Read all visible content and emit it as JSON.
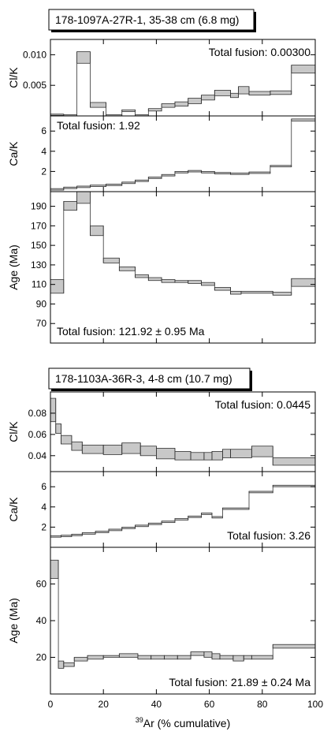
{
  "figure": {
    "xaxis_label_sup": "39",
    "xaxis_label_rest": "Ar (% cumulative)",
    "xticks": [
      "0",
      "20",
      "40",
      "60",
      "80",
      "100"
    ]
  },
  "chart_data": [
    {
      "type": "step-spectrum",
      "sample_label": "178-1097A-27R-1, 35-38 cm (6.8 mg)",
      "xlim": [
        0,
        100
      ],
      "panels": [
        {
          "id": "clk",
          "ylabel": "Cl/K",
          "ylim": [
            0.0,
            0.0125
          ],
          "yticks": [
            0.005,
            0.01
          ],
          "ytick_labels": [
            "0.005",
            "0.010"
          ],
          "annotation": "Total fusion: 0.00300",
          "annotation_pos": "top-right",
          "steps": [
            {
              "x0": 0,
              "x1": 5,
              "lo": 0.0001,
              "hi": 0.0003
            },
            {
              "x0": 5,
              "x1": 10,
              "lo": 0.0,
              "hi": 0.0002
            },
            {
              "x0": 10,
              "x1": 15,
              "lo": 0.0086,
              "hi": 0.0105
            },
            {
              "x0": 15,
              "x1": 21,
              "lo": 0.0014,
              "hi": 0.0022
            },
            {
              "x0": 21,
              "x1": 27,
              "lo": 0.0,
              "hi": 0.0002
            },
            {
              "x0": 27,
              "x1": 32,
              "lo": 0.0007,
              "hi": 0.001
            },
            {
              "x0": 32,
              "x1": 37,
              "lo": 0.0,
              "hi": 0.0002
            },
            {
              "x0": 37,
              "x1": 42,
              "lo": 0.0008,
              "hi": 0.0012
            },
            {
              "x0": 42,
              "x1": 47,
              "lo": 0.0014,
              "hi": 0.002
            },
            {
              "x0": 47,
              "x1": 52,
              "lo": 0.0016,
              "hi": 0.0023
            },
            {
              "x0": 52,
              "x1": 57,
              "lo": 0.002,
              "hi": 0.0029
            },
            {
              "x0": 57,
              "x1": 62,
              "lo": 0.0026,
              "hi": 0.0034
            },
            {
              "x0": 62,
              "x1": 68,
              "lo": 0.0033,
              "hi": 0.0042
            },
            {
              "x0": 68,
              "x1": 71,
              "lo": 0.003,
              "hi": 0.0037
            },
            {
              "x0": 71,
              "x1": 75,
              "lo": 0.0036,
              "hi": 0.0048
            },
            {
              "x0": 75,
              "x1": 83,
              "lo": 0.0034,
              "hi": 0.004
            },
            {
              "x0": 83,
              "x1": 91,
              "lo": 0.0035,
              "hi": 0.0041
            },
            {
              "x0": 91,
              "x1": 100,
              "lo": 0.007,
              "hi": 0.0083
            }
          ]
        },
        {
          "id": "cak",
          "ylabel": "Ca/K",
          "ylim": [
            0,
            7.5
          ],
          "yticks": [
            2,
            4,
            6
          ],
          "ytick_labels": [
            "2",
            "4",
            "6"
          ],
          "annotation": "Total fusion: 1.92",
          "annotation_pos": "top-left",
          "steps": [
            {
              "x0": 0,
              "x1": 5,
              "lo": 0.15,
              "hi": 0.3
            },
            {
              "x0": 5,
              "x1": 10,
              "lo": 0.3,
              "hi": 0.45
            },
            {
              "x0": 10,
              "x1": 15,
              "lo": 0.4,
              "hi": 0.55
            },
            {
              "x0": 15,
              "x1": 21,
              "lo": 0.5,
              "hi": 0.65
            },
            {
              "x0": 21,
              "x1": 27,
              "lo": 0.6,
              "hi": 0.75
            },
            {
              "x0": 27,
              "x1": 32,
              "lo": 0.8,
              "hi": 0.95
            },
            {
              "x0": 32,
              "x1": 37,
              "lo": 1.0,
              "hi": 1.15
            },
            {
              "x0": 37,
              "x1": 42,
              "lo": 1.3,
              "hi": 1.45
            },
            {
              "x0": 42,
              "x1": 47,
              "lo": 1.55,
              "hi": 1.7
            },
            {
              "x0": 47,
              "x1": 52,
              "lo": 1.85,
              "hi": 2.0
            },
            {
              "x0": 52,
              "x1": 57,
              "lo": 1.95,
              "hi": 2.1
            },
            {
              "x0": 57,
              "x1": 62,
              "lo": 1.85,
              "hi": 2.0
            },
            {
              "x0": 62,
              "x1": 68,
              "lo": 1.75,
              "hi": 1.9
            },
            {
              "x0": 68,
              "x1": 75,
              "lo": 1.7,
              "hi": 1.85
            },
            {
              "x0": 75,
              "x1": 83,
              "lo": 1.8,
              "hi": 1.95
            },
            {
              "x0": 83,
              "x1": 91,
              "lo": 2.45,
              "hi": 2.6
            },
            {
              "x0": 91,
              "x1": 100,
              "lo": 7.0,
              "hi": 7.2
            }
          ]
        },
        {
          "id": "age",
          "ylabel": "Age (Ma)",
          "ylim": [
            50,
            205
          ],
          "yticks": [
            70,
            90,
            110,
            130,
            150,
            170,
            190
          ],
          "ytick_labels": [
            "70",
            "90",
            "110",
            "130",
            "150",
            "170",
            "190"
          ],
          "annotation": "Total fusion: 121.92 ± 0.95 Ma",
          "annotation_pos": "bottom-left",
          "steps": [
            {
              "x0": 0,
              "x1": 5,
              "lo": 101,
              "hi": 115
            },
            {
              "x0": 5,
              "x1": 10,
              "lo": 186,
              "hi": 195
            },
            {
              "x0": 10,
              "x1": 15,
              "lo": 193,
              "hi": 205
            },
            {
              "x0": 15,
              "x1": 20,
              "lo": 160,
              "hi": 170
            },
            {
              "x0": 20,
              "x1": 26,
              "lo": 132,
              "hi": 137
            },
            {
              "x0": 26,
              "x1": 32,
              "lo": 124,
              "hi": 128
            },
            {
              "x0": 32,
              "x1": 37,
              "lo": 117,
              "hi": 120
            },
            {
              "x0": 37,
              "x1": 42,
              "lo": 114,
              "hi": 117
            },
            {
              "x0": 42,
              "x1": 47,
              "lo": 112,
              "hi": 115
            },
            {
              "x0": 47,
              "x1": 52,
              "lo": 112,
              "hi": 114
            },
            {
              "x0": 52,
              "x1": 57,
              "lo": 111,
              "hi": 114
            },
            {
              "x0": 57,
              "x1": 62,
              "lo": 109,
              "hi": 112
            },
            {
              "x0": 62,
              "x1": 68,
              "lo": 104,
              "hi": 107
            },
            {
              "x0": 68,
              "x1": 72,
              "lo": 100,
              "hi": 103
            },
            {
              "x0": 72,
              "x1": 84,
              "lo": 101,
              "hi": 103
            },
            {
              "x0": 84,
              "x1": 91,
              "lo": 99,
              "hi": 102
            },
            {
              "x0": 91,
              "x1": 100,
              "lo": 108,
              "hi": 116
            }
          ]
        }
      ]
    },
    {
      "type": "step-spectrum",
      "sample_label": "178-1103A-36R-3, 4-8 cm (10.7 mg)",
      "xlim": [
        0,
        100
      ],
      "panels": [
        {
          "id": "clk",
          "ylabel": "Cl/K",
          "ylim": [
            0.025,
            0.1
          ],
          "yticks": [
            0.04,
            0.06,
            0.08
          ],
          "ytick_labels": [
            "0.04",
            "0.06",
            "0.08"
          ],
          "annotation": "Total fusion: 0.0445",
          "annotation_pos": "top-right",
          "steps": [
            {
              "x0": 0,
              "x1": 2,
              "lo": 0.072,
              "hi": 0.094
            },
            {
              "x0": 2,
              "x1": 4,
              "lo": 0.061,
              "hi": 0.07
            },
            {
              "x0": 4,
              "x1": 8,
              "lo": 0.051,
              "hi": 0.059
            },
            {
              "x0": 8,
              "x1": 12,
              "lo": 0.045,
              "hi": 0.053
            },
            {
              "x0": 12,
              "x1": 20,
              "lo": 0.042,
              "hi": 0.05
            },
            {
              "x0": 20,
              "x1": 27,
              "lo": 0.041,
              "hi": 0.05
            },
            {
              "x0": 27,
              "x1": 34,
              "lo": 0.042,
              "hi": 0.052
            },
            {
              "x0": 34,
              "x1": 40,
              "lo": 0.04,
              "hi": 0.049
            },
            {
              "x0": 40,
              "x1": 47,
              "lo": 0.037,
              "hi": 0.047
            },
            {
              "x0": 47,
              "x1": 53,
              "lo": 0.036,
              "hi": 0.044
            },
            {
              "x0": 53,
              "x1": 58,
              "lo": 0.036,
              "hi": 0.043
            },
            {
              "x0": 58,
              "x1": 61,
              "lo": 0.036,
              "hi": 0.043
            },
            {
              "x0": 61,
              "x1": 65,
              "lo": 0.036,
              "hi": 0.044
            },
            {
              "x0": 65,
              "x1": 68,
              "lo": 0.038,
              "hi": 0.046
            },
            {
              "x0": 68,
              "x1": 76,
              "lo": 0.038,
              "hi": 0.046
            },
            {
              "x0": 76,
              "x1": 84,
              "lo": 0.039,
              "hi": 0.049
            },
            {
              "x0": 84,
              "x1": 100,
              "lo": 0.031,
              "hi": 0.038
            }
          ]
        },
        {
          "id": "cak",
          "ylabel": "Ca/K",
          "ylim": [
            0,
            7.5
          ],
          "yticks": [
            2,
            4,
            6
          ],
          "ytick_labels": [
            "2",
            "4",
            "6"
          ],
          "annotation": "Total fusion: 3.26",
          "annotation_pos": "bottom-right",
          "steps": [
            {
              "x0": 0,
              "x1": 4,
              "lo": 1.0,
              "hi": 1.15
            },
            {
              "x0": 4,
              "x1": 8,
              "lo": 1.05,
              "hi": 1.2
            },
            {
              "x0": 8,
              "x1": 12,
              "lo": 1.15,
              "hi": 1.3
            },
            {
              "x0": 12,
              "x1": 17,
              "lo": 1.3,
              "hi": 1.45
            },
            {
              "x0": 17,
              "x1": 22,
              "lo": 1.45,
              "hi": 1.6
            },
            {
              "x0": 22,
              "x1": 27,
              "lo": 1.65,
              "hi": 1.8
            },
            {
              "x0": 27,
              "x1": 32,
              "lo": 1.85,
              "hi": 2.0
            },
            {
              "x0": 32,
              "x1": 37,
              "lo": 2.05,
              "hi": 2.2
            },
            {
              "x0": 37,
              "x1": 42,
              "lo": 2.25,
              "hi": 2.4
            },
            {
              "x0": 42,
              "x1": 47,
              "lo": 2.45,
              "hi": 2.6
            },
            {
              "x0": 47,
              "x1": 52,
              "lo": 2.7,
              "hi": 2.85
            },
            {
              "x0": 52,
              "x1": 57,
              "lo": 2.95,
              "hi": 3.1
            },
            {
              "x0": 57,
              "x1": 61,
              "lo": 3.25,
              "hi": 3.4
            },
            {
              "x0": 61,
              "x1": 65,
              "lo": 2.9,
              "hi": 3.05
            },
            {
              "x0": 65,
              "x1": 75,
              "lo": 3.75,
              "hi": 3.9
            },
            {
              "x0": 75,
              "x1": 84,
              "lo": 5.4,
              "hi": 5.55
            },
            {
              "x0": 84,
              "x1": 100,
              "lo": 6.0,
              "hi": 6.15
            }
          ]
        },
        {
          "id": "age",
          "ylabel": "Age (Ma)",
          "ylim": [
            0,
            80
          ],
          "yticks": [
            20,
            40,
            60
          ],
          "ytick_labels": [
            "20",
            "40",
            "60"
          ],
          "annotation": "Total fusion: 21.89  ± 0.24 Ma",
          "annotation_pos": "bottom-right",
          "steps": [
            {
              "x0": 0,
              "x1": 3,
              "lo": 63,
              "hi": 73
            },
            {
              "x0": 3,
              "x1": 5,
              "lo": 14,
              "hi": 18
            },
            {
              "x0": 5,
              "x1": 9,
              "lo": 15,
              "hi": 17
            },
            {
              "x0": 9,
              "x1": 14,
              "lo": 18,
              "hi": 20
            },
            {
              "x0": 14,
              "x1": 20,
              "lo": 19,
              "hi": 21
            },
            {
              "x0": 20,
              "x1": 26,
              "lo": 20,
              "hi": 21
            },
            {
              "x0": 26,
              "x1": 33,
              "lo": 20,
              "hi": 22
            },
            {
              "x0": 33,
              "x1": 38,
              "lo": 19,
              "hi": 21
            },
            {
              "x0": 38,
              "x1": 43,
              "lo": 19,
              "hi": 21
            },
            {
              "x0": 43,
              "x1": 48,
              "lo": 19,
              "hi": 21
            },
            {
              "x0": 48,
              "x1": 53,
              "lo": 19,
              "hi": 21
            },
            {
              "x0": 53,
              "x1": 58,
              "lo": 21,
              "hi": 23
            },
            {
              "x0": 58,
              "x1": 61,
              "lo": 20,
              "hi": 23
            },
            {
              "x0": 61,
              "x1": 64,
              "lo": 19,
              "hi": 22
            },
            {
              "x0": 64,
              "x1": 69,
              "lo": 19,
              "hi": 21
            },
            {
              "x0": 69,
              "x1": 73,
              "lo": 18,
              "hi": 21
            },
            {
              "x0": 73,
              "x1": 76,
              "lo": 19,
              "hi": 21
            },
            {
              "x0": 76,
              "x1": 84,
              "lo": 19,
              "hi": 21
            },
            {
              "x0": 84,
              "x1": 100,
              "lo": 25,
              "hi": 27
            }
          ]
        }
      ]
    }
  ]
}
